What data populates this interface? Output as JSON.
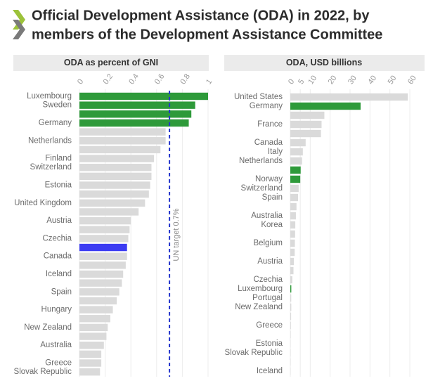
{
  "title": [
    "Official Development Assistance (ODA) in 2022, by",
    "members of the Development Assistance Committee"
  ],
  "chart_data": [
    {
      "type": "hbar",
      "title": "ODA as percent of GNI",
      "categories": [
        "Luxembourg",
        "Sweden",
        null,
        "Germany",
        null,
        "Netherlands",
        null,
        "Finland",
        "Switzerland",
        null,
        "Estonia",
        null,
        "United Kingdom",
        null,
        "Austria",
        null,
        "Czechia",
        null,
        "Canada",
        null,
        "Iceland",
        null,
        "Spain",
        null,
        "Hungary",
        null,
        "New Zealand",
        null,
        "Australia",
        null,
        "Greece",
        "Slovak Republic"
      ],
      "values": [
        1.0,
        0.9,
        0.87,
        0.85,
        0.67,
        0.67,
        0.63,
        0.58,
        0.56,
        0.56,
        0.55,
        0.54,
        0.51,
        0.46,
        0.4,
        0.39,
        0.38,
        0.37,
        0.37,
        0.36,
        0.34,
        0.33,
        0.31,
        0.29,
        0.26,
        0.24,
        0.22,
        0.21,
        0.19,
        0.17,
        0.17,
        0.16
      ],
      "colors": [
        "#2e9a3a",
        "#2e9a3a",
        "#2e9a3a",
        "#2e9a3a",
        "#dadada",
        "#dadada",
        "#dadada",
        "#dadada",
        "#dadada",
        "#dadada",
        "#dadada",
        "#dadada",
        "#dadada",
        "#dadada",
        "#dadada",
        "#dadada",
        "#dadada",
        "#3b3bf2",
        "#dadada",
        "#dadada",
        "#dadada",
        "#dadada",
        "#dadada",
        "#dadada",
        "#dadada",
        "#dadada",
        "#dadada",
        "#dadada",
        "#dadada",
        "#dadada",
        "#dadada",
        "#dadada"
      ],
      "xlim": [
        0,
        1
      ],
      "xticks": [
        0,
        0.2,
        0.4,
        0.6,
        0.8,
        1
      ],
      "grid": true,
      "reference_line": {
        "value": 0.7,
        "label": "UN target 0.7%",
        "color": "#2233cc"
      }
    },
    {
      "type": "hbar",
      "title": "ODA, USD billions",
      "categories": [
        "United States",
        "Germany",
        null,
        "France",
        null,
        "Canada",
        "Italy",
        "Netherlands",
        null,
        "Norway",
        "Switzerland",
        "Spain",
        null,
        "Australia",
        "Korea",
        null,
        "Belgium",
        null,
        "Austria",
        null,
        "Czechia",
        "Luxembourg",
        "Portugal",
        "New Zealand",
        null,
        "Greece",
        null,
        "Estonia",
        "Slovak Republic",
        null,
        "Iceland"
      ],
      "values": [
        59,
        35.3,
        17.1,
        15.7,
        15.4,
        7.7,
        6.3,
        5.9,
        5.2,
        5.0,
        4.2,
        3.9,
        3.1,
        2.8,
        2.5,
        2.4,
        2.3,
        2.2,
        1.8,
        1.6,
        1.0,
        0.5,
        0.45,
        0.5,
        0.4,
        0.3,
        0.2,
        0.1,
        0.16,
        0.15,
        0.1
      ],
      "colors": [
        "#dadada",
        "#2e9a3a",
        "#dadada",
        "#dadada",
        "#dadada",
        "#dadada",
        "#dadada",
        "#dadada",
        "#2e9a3a",
        "#2e9a3a",
        "#dadada",
        "#dadada",
        "#dadada",
        "#dadada",
        "#dadada",
        "#dadada",
        "#dadada",
        "#dadada",
        "#dadada",
        "#dadada",
        "#dadada",
        "#2e9a3a",
        "#dadada",
        "#dadada",
        "#dadada",
        "#dadada",
        "#dadada",
        "#dadada",
        "#dadada",
        "#dadada",
        "#dadada"
      ],
      "xlim": [
        0,
        60
      ],
      "xticks": [
        0,
        5,
        10,
        20,
        30,
        40,
        50,
        60
      ],
      "grid": true
    }
  ]
}
